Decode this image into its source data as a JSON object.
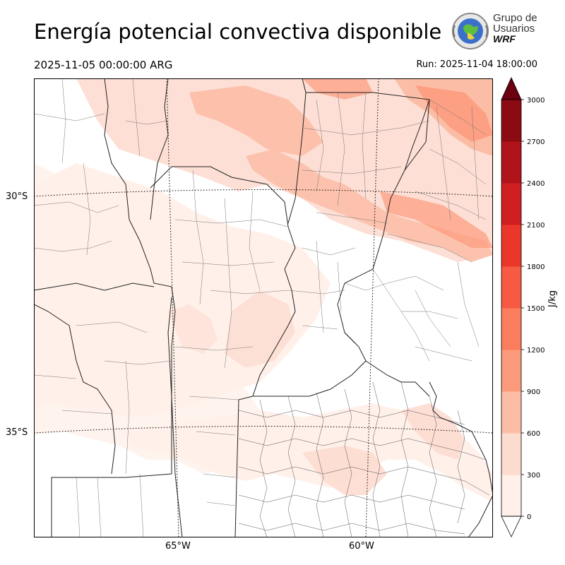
{
  "header": {
    "title": "Energía potencial convectiva disponible",
    "valid_time": "2025-11-05 00:00:00 ARG",
    "run_time": "Run: 2025-11-04 18:00:00"
  },
  "logo": {
    "line1": "Grupo de",
    "line2": "Usuarios",
    "line3": "WRF"
  },
  "map": {
    "lat_labels": [
      "30°S",
      "35°S"
    ],
    "lon_labels": [
      "65°W",
      "60°W"
    ]
  },
  "colorbar": {
    "unit": "J/kg",
    "ticks": [
      "0",
      "300",
      "600",
      "900",
      "1200",
      "1500",
      "1800",
      "2100",
      "2400",
      "2700",
      "3000"
    ],
    "colors": [
      "#fff0ea",
      "#fddcd0",
      "#fcbda6",
      "#fc9a7c",
      "#fb7d5e",
      "#f65a43",
      "#eb372b",
      "#d01f21",
      "#b0141a",
      "#8c0b12",
      "#6a0010"
    ]
  }
}
